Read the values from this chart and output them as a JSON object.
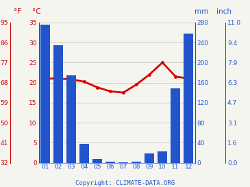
{
  "months": [
    "01",
    "02",
    "03",
    "04",
    "05",
    "06",
    "07",
    "08",
    "09",
    "10",
    "11",
    "12"
  ],
  "precipitation_mm": [
    275,
    235,
    175,
    38,
    8,
    2,
    1,
    2,
    18,
    22,
    148,
    258
  ],
  "temperature_c": [
    21.0,
    21.0,
    20.8,
    20.2,
    18.8,
    17.8,
    17.5,
    19.5,
    22.0,
    25.0,
    21.5,
    21.0
  ],
  "bar_color": "#2255cc",
  "line_color": "#dd0000",
  "left_axis_color": "#cc0000",
  "right_axis_color": "#2255cc",
  "background_color": "#f5f5f0",
  "grid_color": "#bbbbbb",
  "temp_ylim_c": [
    0,
    35
  ],
  "temp_yticks_c": [
    0,
    5,
    10,
    15,
    20,
    25,
    30,
    35
  ],
  "temp_yticks_f": [
    "32",
    "41",
    "50",
    "59",
    "68",
    "77",
    "86",
    "95"
  ],
  "precip_ylim_mm": [
    0,
    280
  ],
  "precip_yticks_mm": [
    0,
    40,
    80,
    120,
    160,
    200,
    240,
    280
  ],
  "precip_yticks_inch": [
    "0.0",
    "1.6",
    "3.1",
    "4.7",
    "6.3",
    "7.9",
    "9.4",
    "11.0"
  ],
  "copyright_text": "Copyright: CLIMATE-DATA.ORG",
  "header_f": "°F",
  "header_c": "°C",
  "header_mm": "mm",
  "header_inch": "inch"
}
